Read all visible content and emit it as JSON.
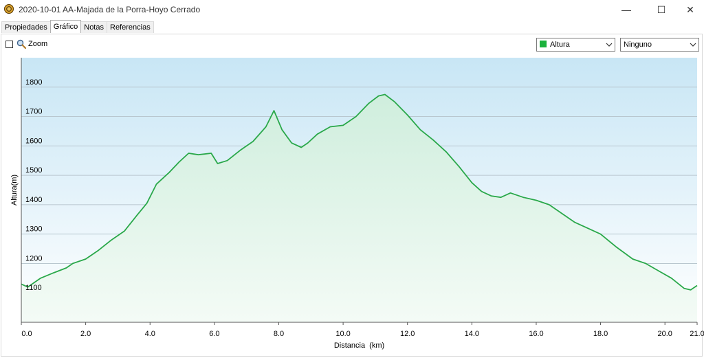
{
  "window": {
    "title": "2020-10-01 AA-Majada de la Porra-Hoyo Cerrado",
    "minimize_glyph": "—",
    "maximize_glyph": "☐",
    "close_glyph": "✕"
  },
  "tabs": [
    {
      "label": "Propiedades",
      "active": false
    },
    {
      "label": "Gráfico",
      "active": true
    },
    {
      "label": "Notas",
      "active": false
    },
    {
      "label": "Referencias",
      "active": false
    }
  ],
  "toolbar": {
    "zoom_label": "Zoom",
    "zoom_checked": false,
    "series_select": "Altura",
    "series_color": "#1bb13c",
    "secondary_select": "Ninguno"
  },
  "chart_data": {
    "type": "area",
    "xlabel": "Distancia  (km)",
    "ylabel": "Altura(m)",
    "xlim": [
      0,
      21.0
    ],
    "ylim": [
      1000,
      1900
    ],
    "x_ticks": [
      "0.0",
      "2.0",
      "4.0",
      "6.0",
      "8.0",
      "10.0",
      "12.0",
      "14.0",
      "16.0",
      "18.0",
      "20.0",
      "21.0"
    ],
    "x_tick_values": [
      0,
      2,
      4,
      6,
      8,
      10,
      12,
      14,
      16,
      18,
      20,
      21
    ],
    "y_ticks": [
      "1100",
      "1200",
      "1300",
      "1400",
      "1500",
      "1600",
      "1700",
      "1800"
    ],
    "y_tick_values": [
      1100,
      1200,
      1300,
      1400,
      1500,
      1600,
      1700,
      1800
    ],
    "grid": true,
    "line_color": "#2aa84a",
    "series": [
      {
        "x": [
          0,
          0.2,
          0.6,
          1.0,
          1.4,
          1.6,
          2.0,
          2.4,
          2.8,
          3.2,
          3.6,
          3.9,
          4.2,
          4.6,
          4.9,
          5.2,
          5.5,
          5.9,
          6.1,
          6.4,
          6.8,
          7.2,
          7.6,
          7.85,
          8.1,
          8.4,
          8.7,
          8.9,
          9.2,
          9.6,
          10.0,
          10.4,
          10.8,
          11.1,
          11.3,
          11.6,
          12.0,
          12.4,
          12.8,
          13.2,
          13.6,
          14.0,
          14.3,
          14.6,
          14.9,
          15.2,
          15.6,
          16.0,
          16.4,
          16.8,
          17.2,
          17.6,
          18.0,
          18.5,
          19.0,
          19.4,
          19.8,
          20.2,
          20.6,
          20.8,
          21.0
        ],
        "y": [
          1130,
          1120,
          1150,
          1168,
          1185,
          1200,
          1215,
          1245,
          1280,
          1310,
          1365,
          1405,
          1470,
          1510,
          1545,
          1575,
          1570,
          1575,
          1540,
          1550,
          1585,
          1615,
          1665,
          1720,
          1655,
          1610,
          1595,
          1610,
          1640,
          1665,
          1670,
          1700,
          1745,
          1770,
          1775,
          1750,
          1705,
          1655,
          1620,
          1580,
          1530,
          1475,
          1445,
          1430,
          1425,
          1440,
          1425,
          1415,
          1400,
          1370,
          1340,
          1320,
          1300,
          1255,
          1215,
          1200,
          1175,
          1150,
          1115,
          1110,
          1125
        ]
      }
    ]
  }
}
